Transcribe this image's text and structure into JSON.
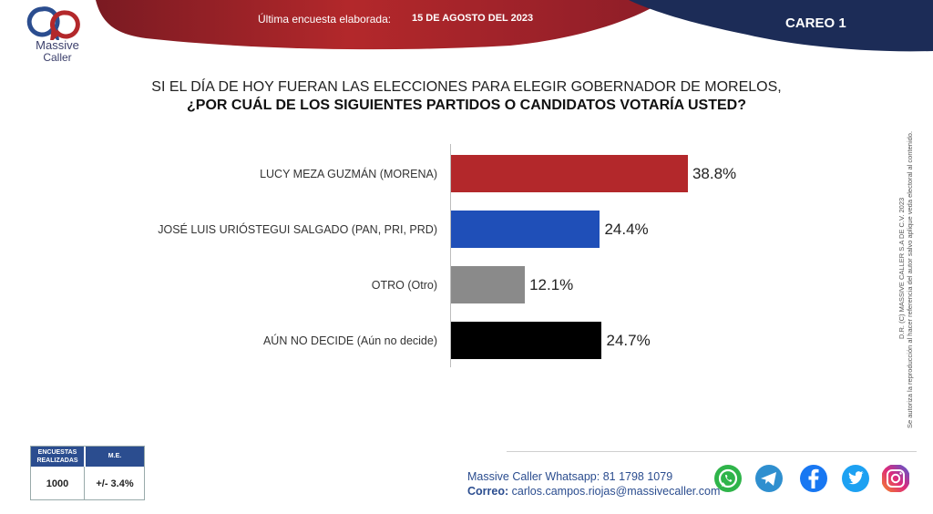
{
  "header": {
    "brand_name": "Massive",
    "brand_sub": "Caller",
    "survey_label": "Última encuesta elaborada:",
    "survey_date": "15 DE AGOSTO DEL 2023",
    "careo": "CAREO 1"
  },
  "question": {
    "line1": "SI EL DÍA DE HOY FUERAN LAS ELECCIONES PARA ELEGIR GOBERNADOR DE MORELOS,",
    "line2": "¿POR CUÁL DE LOS SIGUIENTES PARTIDOS O CANDIDATOS  VOTARÍA USTED?"
  },
  "chart_data": {
    "type": "bar",
    "orientation": "horizontal",
    "categories": [
      "LUCY MEZA GUZMÁN (MORENA)",
      "JOSÉ LUIS URIÓSTEGUI SALGADO (PAN, PRI, PRD)",
      "OTRO (Otro)",
      "AÚN NO DECIDE (Aún no decide)"
    ],
    "values": [
      38.8,
      24.4,
      12.1,
      24.7
    ],
    "value_labels": [
      "38.8%",
      "24.4%",
      "12.1%",
      "24.7%"
    ],
    "colors": [
      "#b3282b",
      "#1f4fb8",
      "#8a8a8a",
      "#000000"
    ],
    "title": "SI EL DÍA DE HOY FUERAN LAS ELECCIONES PARA ELEGIR GOBERNADOR DE MORELOS, ¿POR CUÁL DE LOS SIGUIENTES PARTIDOS O CANDIDATOS  VOTARÍA USTED?",
    "xlim": [
      0,
      50
    ],
    "grid": false,
    "legend": "none"
  },
  "side_text": {
    "line1": "D.R. (C) MASSIVE CALLER S.A DE C.V. 2023",
    "line2": "Se autoriza la reproducción al hacer referencia del autor salvo aplique veda electoral al contenido."
  },
  "table": {
    "col1_header": "ENCUESTAS REALIZADAS",
    "col2_header": "M.E.",
    "col1_value": "1000",
    "col2_value": "+/- 3.4%"
  },
  "footer": {
    "whatsapp_label": "Massive Caller Whatsapp:",
    "whatsapp_number": "81 1798 1079",
    "email_label": "Correo:",
    "email": "carlos.campos.riojas@massivecaller.com"
  },
  "social_icons": [
    "whatsapp-icon",
    "telegram-icon",
    "facebook-icon",
    "twitter-icon",
    "instagram-icon"
  ],
  "colors": {
    "header_red": "#b3282b",
    "header_navy": "#1c2c57",
    "accent_blue": "#2b4d8f"
  }
}
